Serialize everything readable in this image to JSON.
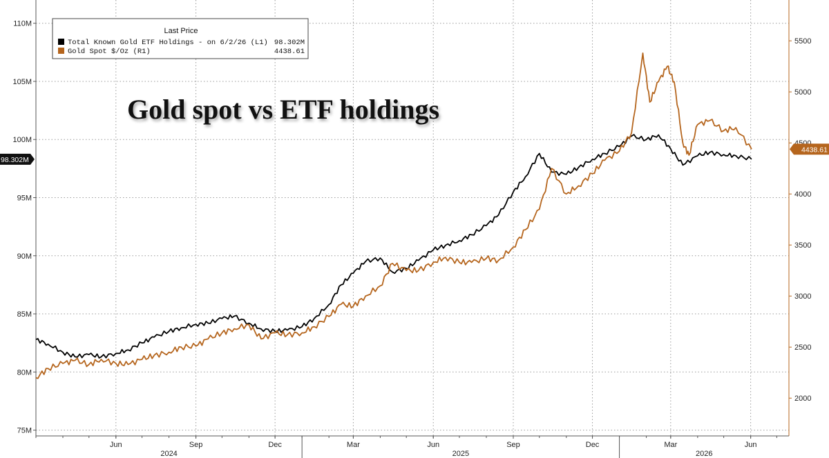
{
  "chart_data": {
    "type": "line",
    "title": "Gold spot vs ETF holdings",
    "legend": {
      "header": "Last Price",
      "placement": "top-left",
      "entries": [
        {
          "label": "Total Known Gold ETF Holdings - on 6/2/26  (L1)",
          "value": "98.302M",
          "color": "#000000"
        },
        {
          "label": "Gold Spot $/Oz  (R1)",
          "value": "4438.61",
          "color": "#b5651d"
        }
      ]
    },
    "x_axis": {
      "month_ticks": [
        "Jun",
        "Sep",
        "Dec",
        "Mar",
        "Jun",
        "Sep",
        "Dec",
        "Mar",
        "Jun"
      ],
      "month_tick_dates": [
        "2024-06-01",
        "2024-09-01",
        "2024-12-01",
        "2025-03-01",
        "2025-06-01",
        "2025-09-01",
        "2025-12-01",
        "2026-03-01",
        "2026-06-01"
      ],
      "years": [
        "2024",
        "2025",
        "2026"
      ],
      "range": [
        "2024-03-01",
        "2026-07-15"
      ]
    },
    "y_left": {
      "label": "",
      "ticks": [
        "75M",
        "80M",
        "85M",
        "90M",
        "95M",
        "100M",
        "105M",
        "110M"
      ],
      "range": [
        74.5,
        112
      ],
      "last_value_tag": "98.302M"
    },
    "y_right": {
      "label": "",
      "ticks": [
        "2000",
        "2500",
        "3000",
        "3500",
        "4000",
        "4500",
        "5000",
        "5500"
      ],
      "range": [
        1630,
        5900
      ],
      "last_value_tag": "4438.61"
    },
    "grid": true,
    "series": [
      {
        "name": "Total Known Gold ETF Holdings",
        "axis": "left",
        "color": "#000000",
        "points": [
          [
            "2024-03-01",
            82.8
          ],
          [
            "2024-03-15",
            82.4
          ],
          [
            "2024-04-01",
            81.7
          ],
          [
            "2024-04-15",
            81.3
          ],
          [
            "2024-05-01",
            81.5
          ],
          [
            "2024-05-15",
            81.3
          ],
          [
            "2024-06-01",
            81.6
          ],
          [
            "2024-06-15",
            81.9
          ],
          [
            "2024-07-01",
            82.5
          ],
          [
            "2024-07-15",
            83.0
          ],
          [
            "2024-08-01",
            83.5
          ],
          [
            "2024-08-15",
            83.8
          ],
          [
            "2024-09-01",
            84.1
          ],
          [
            "2024-09-15",
            84.2
          ],
          [
            "2024-10-01",
            84.6
          ],
          [
            "2024-10-15",
            84.8
          ],
          [
            "2024-11-01",
            84.2
          ],
          [
            "2024-11-15",
            83.7
          ],
          [
            "2024-12-01",
            83.5
          ],
          [
            "2024-12-15",
            83.6
          ],
          [
            "2025-01-01",
            83.9
          ],
          [
            "2025-01-15",
            84.6
          ],
          [
            "2025-02-01",
            85.8
          ],
          [
            "2025-02-15",
            87.5
          ],
          [
            "2025-03-01",
            88.5
          ],
          [
            "2025-03-15",
            89.5
          ],
          [
            "2025-04-01",
            89.8
          ],
          [
            "2025-04-15",
            88.6
          ],
          [
            "2025-05-01",
            88.9
          ],
          [
            "2025-05-15",
            89.6
          ],
          [
            "2025-06-01",
            90.5
          ],
          [
            "2025-06-15",
            90.9
          ],
          [
            "2025-07-01",
            91.3
          ],
          [
            "2025-07-15",
            91.8
          ],
          [
            "2025-08-01",
            92.6
          ],
          [
            "2025-08-15",
            93.5
          ],
          [
            "2025-09-01",
            95.5
          ],
          [
            "2025-09-15",
            96.8
          ],
          [
            "2025-10-01",
            98.8
          ],
          [
            "2025-10-15",
            97.2
          ],
          [
            "2025-11-01",
            97.0
          ],
          [
            "2025-11-15",
            97.6
          ],
          [
            "2025-12-01",
            98.3
          ],
          [
            "2025-12-15",
            98.8
          ],
          [
            "2026-01-01",
            99.4
          ],
          [
            "2026-01-15",
            100.3
          ],
          [
            "2026-02-01",
            100.0
          ],
          [
            "2026-02-15",
            100.4
          ],
          [
            "2026-03-01",
            99.2
          ],
          [
            "2026-03-15",
            97.8
          ],
          [
            "2026-04-01",
            98.6
          ],
          [
            "2026-04-15",
            98.9
          ],
          [
            "2026-05-01",
            98.7
          ],
          [
            "2026-05-15",
            98.6
          ],
          [
            "2026-06-02",
            98.302
          ]
        ]
      },
      {
        "name": "Gold Spot $/Oz",
        "axis": "right",
        "color": "#b5651d",
        "points": [
          [
            "2024-03-01",
            2200
          ],
          [
            "2024-03-15",
            2290
          ],
          [
            "2024-04-01",
            2340
          ],
          [
            "2024-04-15",
            2370
          ],
          [
            "2024-05-01",
            2330
          ],
          [
            "2024-05-15",
            2380
          ],
          [
            "2024-06-01",
            2340
          ],
          [
            "2024-06-15",
            2330
          ],
          [
            "2024-07-01",
            2380
          ],
          [
            "2024-07-15",
            2420
          ],
          [
            "2024-08-01",
            2450
          ],
          [
            "2024-08-15",
            2500
          ],
          [
            "2024-09-01",
            2510
          ],
          [
            "2024-09-15",
            2580
          ],
          [
            "2024-10-01",
            2640
          ],
          [
            "2024-10-15",
            2680
          ],
          [
            "2024-11-01",
            2720
          ],
          [
            "2024-11-15",
            2580
          ],
          [
            "2024-12-01",
            2640
          ],
          [
            "2024-12-15",
            2620
          ],
          [
            "2025-01-01",
            2640
          ],
          [
            "2025-01-15",
            2700
          ],
          [
            "2025-02-01",
            2800
          ],
          [
            "2025-02-15",
            2920
          ],
          [
            "2025-03-01",
            2900
          ],
          [
            "2025-03-15",
            3000
          ],
          [
            "2025-04-01",
            3100
          ],
          [
            "2025-04-15",
            3320
          ],
          [
            "2025-05-01",
            3250
          ],
          [
            "2025-05-15",
            3250
          ],
          [
            "2025-06-01",
            3330
          ],
          [
            "2025-06-15",
            3380
          ],
          [
            "2025-07-01",
            3330
          ],
          [
            "2025-07-15",
            3330
          ],
          [
            "2025-08-01",
            3370
          ],
          [
            "2025-08-15",
            3350
          ],
          [
            "2025-09-01",
            3480
          ],
          [
            "2025-09-15",
            3650
          ],
          [
            "2025-10-01",
            3850
          ],
          [
            "2025-10-15",
            4250
          ],
          [
            "2025-11-01",
            4000
          ],
          [
            "2025-11-15",
            4080
          ],
          [
            "2025-12-01",
            4200
          ],
          [
            "2025-12-15",
            4330
          ],
          [
            "2026-01-01",
            4420
          ],
          [
            "2026-01-15",
            4600
          ],
          [
            "2026-01-28",
            5380
          ],
          [
            "2026-02-05",
            4900
          ],
          [
            "2026-02-15",
            5100
          ],
          [
            "2026-02-25",
            5250
          ],
          [
            "2026-03-05",
            5100
          ],
          [
            "2026-03-15",
            4500
          ],
          [
            "2026-03-22",
            4380
          ],
          [
            "2026-04-01",
            4680
          ],
          [
            "2026-04-15",
            4720
          ],
          [
            "2026-05-01",
            4620
          ],
          [
            "2026-05-15",
            4650
          ],
          [
            "2026-06-02",
            4438.61
          ]
        ]
      }
    ]
  }
}
